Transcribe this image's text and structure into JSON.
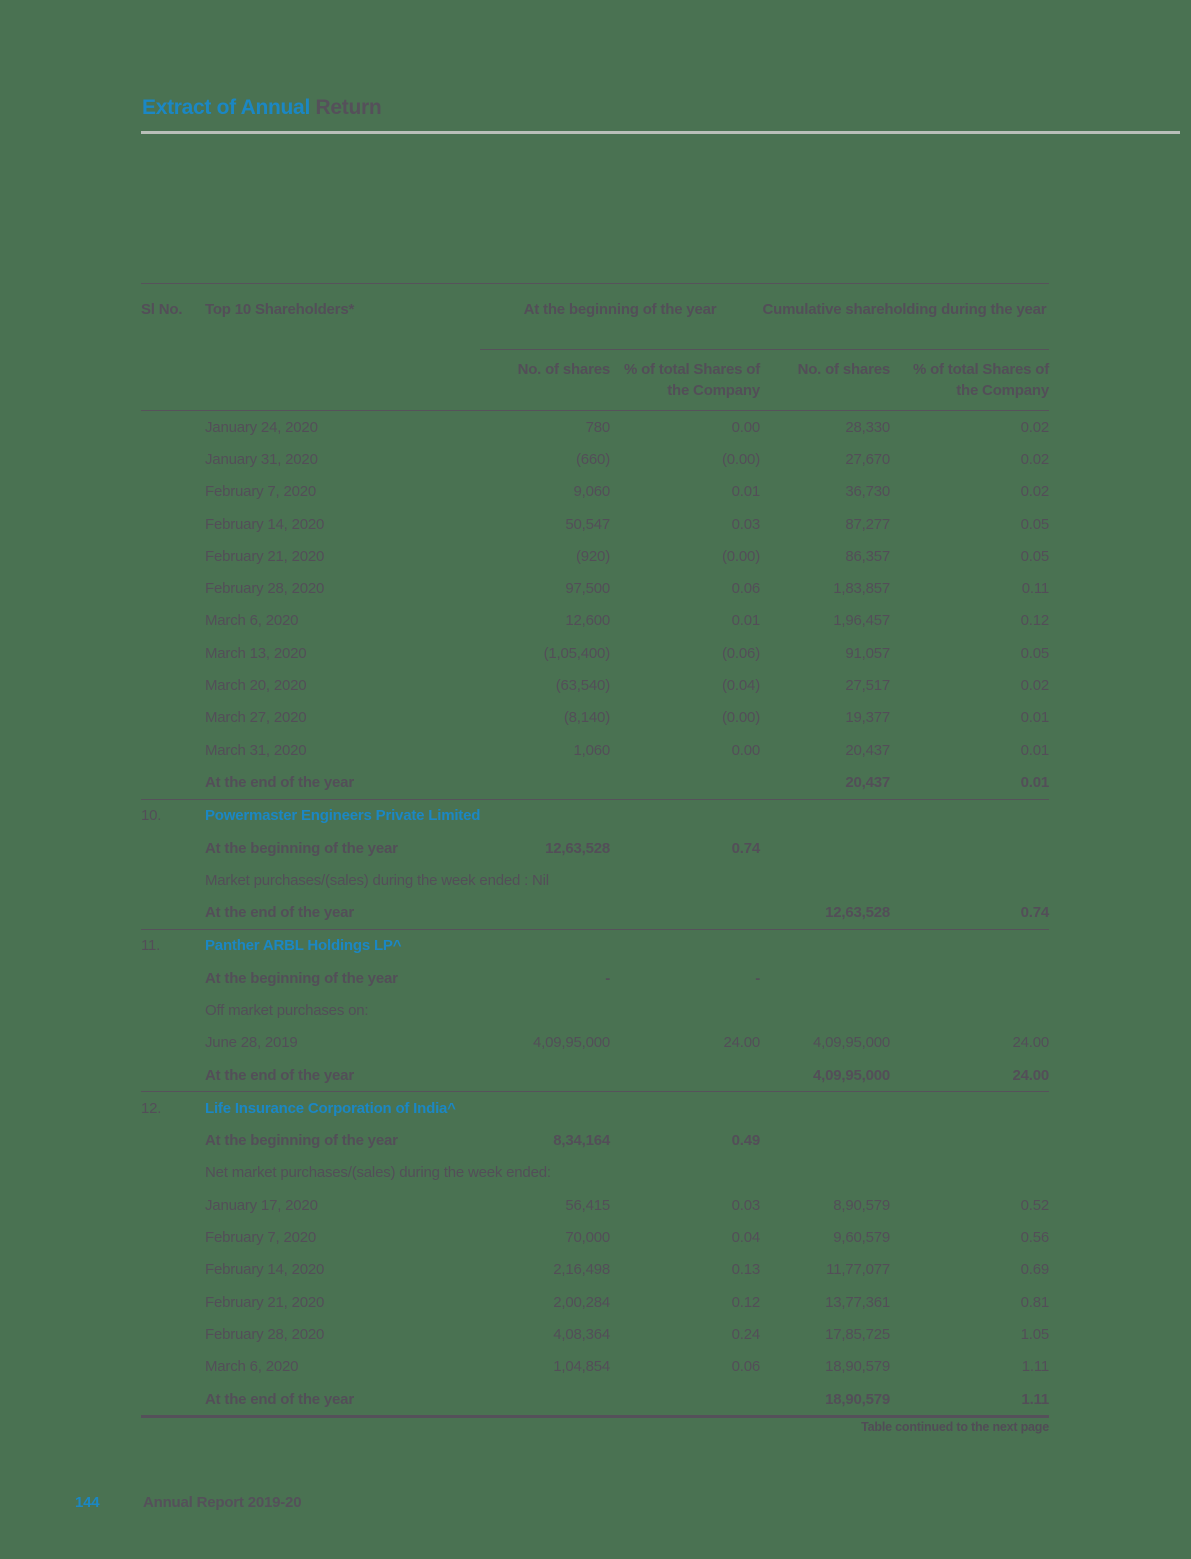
{
  "page": {
    "title_accent": "Extract of Annual",
    "title_rest": " Return",
    "continuation_note": "Table continued to the next page",
    "footer_page_number": "144",
    "footer_text": "Annual Report 2019-20"
  },
  "colors": {
    "background": "#4a7252",
    "accent_blue": "#1b87c4",
    "text_dark": "#534e58",
    "rule_light": "#b9bfb9"
  },
  "table": {
    "headers": {
      "sl_no": "Sl No.",
      "shareholders": "Top 10 Shareholders*",
      "group_beginning": "At the beginning of the year",
      "group_cumulative": "Cumulative shareholding during the year",
      "sub_shares_1": "No. of shares",
      "sub_pct_1": "% of total Shares of the Company",
      "sub_shares_2": "No. of shares",
      "sub_pct_2": "% of total Shares of the Company"
    },
    "rows": [
      {
        "label": "January 24, 2020",
        "c1": "780",
        "c2": "0.00",
        "c3": "28,330",
        "c4": "0.02",
        "style": "normal"
      },
      {
        "label": "January 31, 2020",
        "c1": "(660)",
        "c2": "(0.00)",
        "c3": "27,670",
        "c4": "0.02",
        "style": "normal"
      },
      {
        "label": "February 7, 2020",
        "c1": "9,060",
        "c2": "0.01",
        "c3": "36,730",
        "c4": "0.02",
        "style": "normal"
      },
      {
        "label": "February 14, 2020",
        "c1": "50,547",
        "c2": "0.03",
        "c3": "87,277",
        "c4": "0.05",
        "style": "normal"
      },
      {
        "label": "February 21, 2020",
        "c1": "(920)",
        "c2": "(0.00)",
        "c3": "86,357",
        "c4": "0.05",
        "style": "normal"
      },
      {
        "label": "February 28, 2020",
        "c1": "97,500",
        "c2": "0.06",
        "c3": "1,83,857",
        "c4": "0.11",
        "style": "normal"
      },
      {
        "label": "March 6, 2020",
        "c1": "12,600",
        "c2": "0.01",
        "c3": "1,96,457",
        "c4": "0.12",
        "style": "normal"
      },
      {
        "label": "March 13, 2020",
        "c1": "(1,05,400)",
        "c2": "(0.06)",
        "c3": "91,057",
        "c4": "0.05",
        "style": "normal"
      },
      {
        "label": "March 20, 2020",
        "c1": "(63,540)",
        "c2": "(0.04)",
        "c3": "27,517",
        "c4": "0.02",
        "style": "normal"
      },
      {
        "label": "March 27, 2020",
        "c1": "(8,140)",
        "c2": "(0.00)",
        "c3": "19,377",
        "c4": "0.01",
        "style": "normal"
      },
      {
        "label": "March 31, 2020",
        "c1": "1,060",
        "c2": "0.00",
        "c3": "20,437",
        "c4": "0.01",
        "style": "normal"
      },
      {
        "label": "At the end of the year",
        "c3": "20,437",
        "c4": "0.01",
        "style": "bold",
        "sep": true
      },
      {
        "sl": "10.",
        "label": "Powermaster Engineers Private Limited",
        "style": "section"
      },
      {
        "label": "At the beginning of the year",
        "c1": "12,63,528",
        "c2": "0.74",
        "style": "bold"
      },
      {
        "label": "Market purchases/(sales) during the week ended : Nil",
        "style": "normal"
      },
      {
        "label": "At the end of the year",
        "c3": "12,63,528",
        "c4": "0.74",
        "style": "bold",
        "sep": true
      },
      {
        "sl": "11.",
        "label": "Panther ARBL Holdings LP^",
        "style": "section"
      },
      {
        "label": "At the beginning of the year",
        "c1": "-",
        "c2": "-",
        "style": "bold"
      },
      {
        "label": "Off market purchases on:",
        "style": "normal"
      },
      {
        "label": "June 28, 2019",
        "c1": "4,09,95,000",
        "c2": "24.00",
        "c3": "4,09,95,000",
        "c4": "24.00",
        "style": "normal"
      },
      {
        "label": "At the end of the year",
        "c3": "4,09,95,000",
        "c4": "24.00",
        "style": "bold",
        "sep": true
      },
      {
        "sl": "12.",
        "label": "Life Insurance Corporation of India^",
        "style": "section"
      },
      {
        "label": "At the beginning of the year",
        "c1": "8,34,164",
        "c2": "0.49",
        "style": "bold"
      },
      {
        "label": "Net market purchases/(sales) during the week ended:",
        "style": "normal"
      },
      {
        "label": "January 17, 2020",
        "c1": "56,415",
        "c2": "0.03",
        "c3": "8,90,579",
        "c4": "0.52",
        "style": "normal"
      },
      {
        "label": "February 7, 2020",
        "c1": "70,000",
        "c2": "0.04",
        "c3": "9,60,579",
        "c4": "0.56",
        "style": "normal"
      },
      {
        "label": "February 14, 2020",
        "c1": "2,16,498",
        "c2": "0.13",
        "c3": "11,77,077",
        "c4": "0.69",
        "style": "normal"
      },
      {
        "label": "February 21, 2020",
        "c1": "2,00,284",
        "c2": "0.12",
        "c3": "13,77,361",
        "c4": "0.81",
        "style": "normal"
      },
      {
        "label": "February 28, 2020",
        "c1": "4,08,364",
        "c2": "0.24",
        "c3": "17,85,725",
        "c4": "1.05",
        "style": "normal"
      },
      {
        "label": "March 6, 2020",
        "c1": "1,04,854",
        "c2": "0.06",
        "c3": "18,90,579",
        "c4": "1.11",
        "style": "normal"
      },
      {
        "label": "At the end of the year",
        "c3": "18,90,579",
        "c4": "1.11",
        "style": "bold"
      }
    ]
  }
}
